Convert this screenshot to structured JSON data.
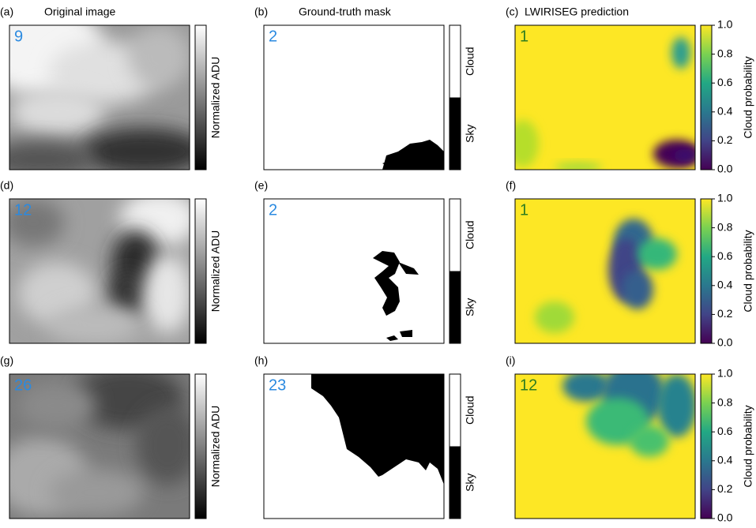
{
  "rows": [
    {
      "panels": [
        {
          "label": "(a)",
          "title": "Original image",
          "count": 9,
          "colorbar_label": "Normalized ADU"
        },
        {
          "label": "(b)",
          "title": "Ground-truth mask",
          "count": 2,
          "colorbar_labels": [
            "Cloud",
            "Sky"
          ]
        },
        {
          "label": "(c)",
          "title": "LWIRISEG prediction",
          "count": 1,
          "colorbar_label": "Cloud probability"
        }
      ]
    },
    {
      "panels": [
        {
          "label": "(d)",
          "count": 12,
          "colorbar_label": "Normalized ADU"
        },
        {
          "label": "(e)",
          "count": 2,
          "colorbar_labels": [
            "Cloud",
            "Sky"
          ]
        },
        {
          "label": "(f)",
          "count": 1,
          "colorbar_label": "Cloud probability"
        }
      ]
    },
    {
      "panels": [
        {
          "label": "(g)",
          "count": 26,
          "colorbar_label": "Normalized ADU"
        },
        {
          "label": "(h)",
          "count": 23,
          "colorbar_labels": [
            "Cloud",
            "Sky"
          ]
        },
        {
          "label": "(i)",
          "count": 12,
          "colorbar_label": "Cloud probability"
        }
      ]
    }
  ],
  "probability_ticks": [
    {
      "value": 0,
      "label": "0.0"
    },
    {
      "value": 0.2,
      "label": "0.2"
    },
    {
      "value": 0.4,
      "label": "0.4"
    },
    {
      "value": 0.6,
      "label": "0.6"
    },
    {
      "value": 0.8,
      "label": "0.8"
    },
    {
      "value": 1,
      "label": "1.0"
    }
  ]
}
